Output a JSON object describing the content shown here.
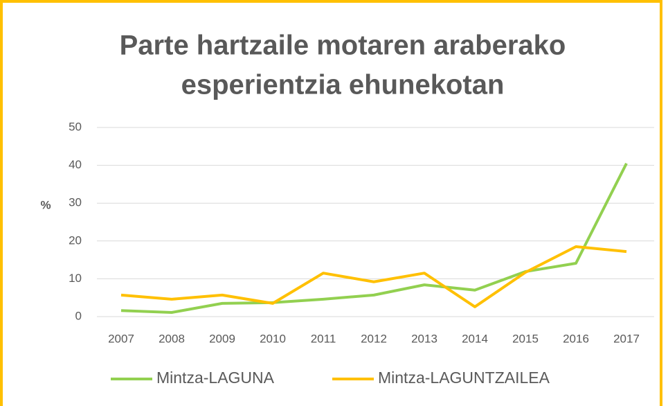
{
  "chart_data": {
    "type": "line",
    "title": [
      "Parte hartzaile motaren araberako",
      "esperientzia ehunekotan"
    ],
    "y_label": "%",
    "categories": [
      "2007",
      "2008",
      "2009",
      "2010",
      "2011",
      "2012",
      "2013",
      "2014",
      "2015",
      "2016",
      "2017"
    ],
    "series": [
      {
        "name": "Mintza-LAGUNA",
        "color": "#92d050",
        "values": [
          1.6,
          1.1,
          3.5,
          3.7,
          4.6,
          5.7,
          8.4,
          7.0,
          11.9,
          14.1,
          40.5
        ]
      },
      {
        "name": "Mintza-LAGUNTZAILEA",
        "color": "#ffc000",
        "values": [
          5.7,
          4.6,
          5.7,
          3.5,
          11.5,
          9.2,
          11.5,
          2.6,
          11.7,
          18.5,
          17.2
        ]
      }
    ],
    "ylim": [
      0,
      50
    ],
    "yticks": [
      0,
      10,
      20,
      30,
      40,
      50
    ],
    "grid": true,
    "legend": "bottom"
  }
}
